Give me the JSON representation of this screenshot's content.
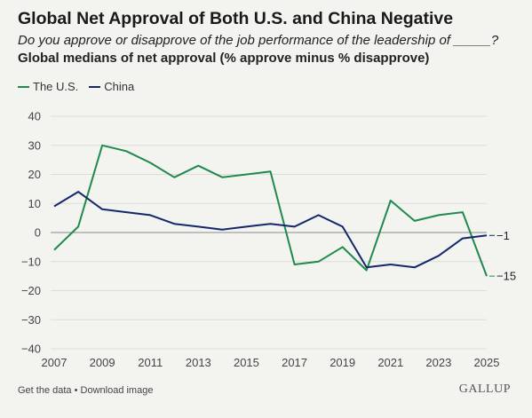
{
  "header": {
    "title": "Global Net Approval of Both U.S. and China Negative",
    "subtitle": "Do you approve or disapprove of the job performance of the leadership of _____?",
    "subtitle2": "Global medians of net approval (% approve minus % disapprove)"
  },
  "footer": {
    "get_data": "Get the data",
    "separator": " • ",
    "download": "Download image",
    "brand": "GALLUP"
  },
  "chart_data": {
    "type": "line",
    "title": "Global Net Approval of Both U.S. and China Negative",
    "xlabel": "",
    "ylabel": "",
    "xlim": [
      2007,
      2025
    ],
    "ylim": [
      -40,
      40
    ],
    "x_ticks": [
      2007,
      2009,
      2011,
      2013,
      2015,
      2017,
      2019,
      2021,
      2023,
      2025
    ],
    "y_ticks": [
      40,
      30,
      20,
      10,
      0,
      -10,
      -20,
      -30,
      -40
    ],
    "y_tick_labels": [
      "40",
      "30",
      "20",
      "10",
      "0",
      "−10",
      "−20",
      "−30",
      "−40"
    ],
    "grid": "horizontal",
    "legend": "top-left",
    "series": [
      {
        "name": "The U.S.",
        "color": "#1f8a4c",
        "x": [
          2007,
          2008,
          2009,
          2010,
          2011,
          2012,
          2013,
          2014,
          2016,
          2017,
          2018,
          2019,
          2020,
          2021,
          2022,
          2023,
          2024,
          2025
        ],
        "values": [
          -6,
          2,
          30,
          28,
          24,
          19,
          23,
          19,
          21,
          -11,
          -10,
          -5,
          -13,
          11,
          4,
          6,
          7,
          -15
        ],
        "end_label": "−15"
      },
      {
        "name": "China",
        "color": "#13276b",
        "x": [
          2007,
          2008,
          2009,
          2010,
          2011,
          2012,
          2013,
          2014,
          2015,
          2016,
          2017,
          2018,
          2019,
          2020,
          2021,
          2022,
          2023,
          2024,
          2025
        ],
        "values": [
          9,
          14,
          8,
          7,
          6,
          3,
          2,
          1,
          2,
          3,
          2,
          6,
          2,
          -12,
          -11,
          -12,
          -8,
          -2,
          -1
        ],
        "end_label": "−1"
      }
    ]
  }
}
